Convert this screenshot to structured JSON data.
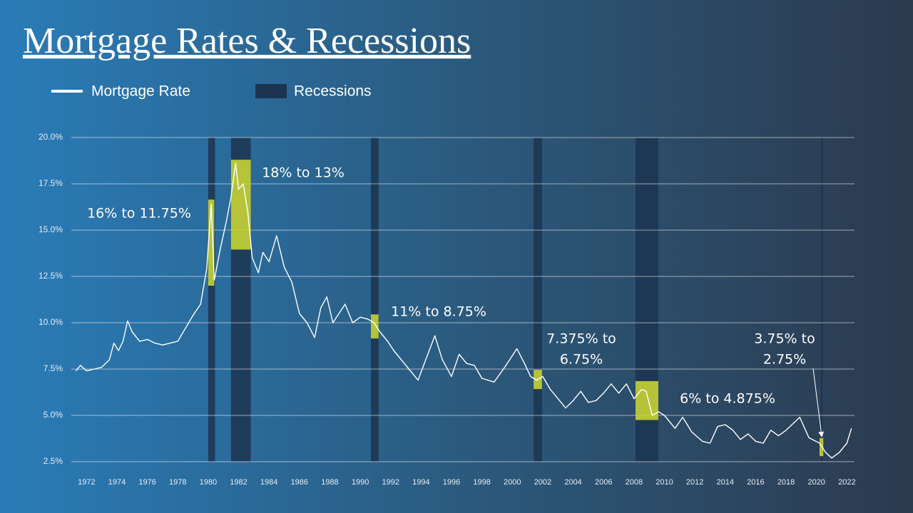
{
  "chart_data": {
    "type": "line",
    "title": "Mortgage Rates & Recessions",
    "xlim": [
      1971,
      2022.5
    ],
    "ylim": [
      2,
      20
    ],
    "xticks": [
      1972,
      1974,
      1976,
      1978,
      1980,
      1982,
      1984,
      1986,
      1988,
      1990,
      1992,
      1994,
      1996,
      1998,
      2000,
      2002,
      2004,
      2006,
      2008,
      2010,
      2012,
      2014,
      2016,
      2018,
      2020,
      2022
    ],
    "yticks": [
      {
        "value": 2.5,
        "label": "2.5%"
      },
      {
        "value": 5,
        "label": "5.0%"
      },
      {
        "value": 7.5,
        "label": "7.5%"
      },
      {
        "value": 10,
        "label": "10.0%"
      },
      {
        "value": 12.5,
        "label": "12.5%"
      },
      {
        "value": 15,
        "label": "15.0%"
      },
      {
        "value": 17.5,
        "label": "17.5%"
      },
      {
        "value": 20,
        "label": "20.0%"
      }
    ],
    "grid": true,
    "series": [
      {
        "name": "Mortgage Rate",
        "color": "#ffffff",
        "x": [
          1971.3,
          1971.6,
          1972,
          1972.5,
          1973,
          1973.5,
          1973.8,
          1974.1,
          1974.4,
          1974.7,
          1975,
          1975.5,
          1976,
          1976.5,
          1977,
          1977.5,
          1978,
          1978.5,
          1979,
          1979.5,
          1979.9,
          1980.2,
          1980.4,
          1980.8,
          1981.2,
          1981.5,
          1981.8,
          1982.0,
          1982.3,
          1982.6,
          1982.9,
          1983.3,
          1983.6,
          1984,
          1984.5,
          1985,
          1985.5,
          1986,
          1986.5,
          1987,
          1987.4,
          1987.8,
          1988.2,
          1988.6,
          1989,
          1989.5,
          1990,
          1990.5,
          1990.9,
          1991.3,
          1991.8,
          1992.2,
          1992.7,
          1993.2,
          1993.8,
          1994.3,
          1994.9,
          1995.4,
          1996,
          1996.5,
          1997,
          1997.5,
          1998,
          1998.8,
          1999.5,
          2000.3,
          2000.8,
          2001.2,
          2001.6,
          2002,
          2002.5,
          2003,
          2003.5,
          2004,
          2004.5,
          2005,
          2005.5,
          2006,
          2006.5,
          2007,
          2007.5,
          2008,
          2008.5,
          2008.8,
          2009.2,
          2009.6,
          2010,
          2010.7,
          2011.2,
          2011.8,
          2012.5,
          2013,
          2013.5,
          2014,
          2014.5,
          2015,
          2015.5,
          2016,
          2016.5,
          2017,
          2017.5,
          2018,
          2018.9,
          2019.5,
          2020.2,
          2020.6,
          2021,
          2021.5,
          2022,
          2022.3
        ],
        "values": [
          7.4,
          7.7,
          7.4,
          7.5,
          7.6,
          8.0,
          8.9,
          8.5,
          9.0,
          10.1,
          9.5,
          9.0,
          9.1,
          8.9,
          8.8,
          8.9,
          9.0,
          9.7,
          10.4,
          11.0,
          12.9,
          16.4,
          12.3,
          14.0,
          15.5,
          16.8,
          18.6,
          17.2,
          17.5,
          16.0,
          13.5,
          12.7,
          13.8,
          13.3,
          14.7,
          13.0,
          12.2,
          10.5,
          10.0,
          9.2,
          10.8,
          11.4,
          10.0,
          10.5,
          11.0,
          10.0,
          10.3,
          10.2,
          10.0,
          9.5,
          9.0,
          8.5,
          8.0,
          7.5,
          6.9,
          8.0,
          9.3,
          8.0,
          7.1,
          8.3,
          7.8,
          7.7,
          7.0,
          6.8,
          7.6,
          8.6,
          7.8,
          7.1,
          6.9,
          7.1,
          6.4,
          5.9,
          5.4,
          5.8,
          6.3,
          5.7,
          5.8,
          6.2,
          6.7,
          6.2,
          6.7,
          5.9,
          6.4,
          6.3,
          5.0,
          5.2,
          5.0,
          4.3,
          4.9,
          4.1,
          3.6,
          3.5,
          4.4,
          4.5,
          4.2,
          3.7,
          4.0,
          3.6,
          3.5,
          4.2,
          3.9,
          4.2,
          4.9,
          3.8,
          3.5,
          3.0,
          2.7,
          3.0,
          3.5,
          4.3
        ]
      }
    ],
    "recessions": {
      "name": "Recessions",
      "color": "#1c3450",
      "ranges": [
        [
          1980.0,
          1980.45
        ],
        [
          1981.5,
          1982.8
        ],
        [
          1990.7,
          1991.2
        ],
        [
          2001.4,
          2001.95
        ],
        [
          2008.1,
          2009.6
        ],
        [
          2020.3,
          2020.4
        ]
      ]
    },
    "highlight_color": "#c6d336",
    "highlights": [
      {
        "x": [
          1980.0,
          1980.4
        ],
        "y": [
          12,
          16.65
        ],
        "label": [
          "16% to 11.75%"
        ]
      },
      {
        "x": [
          1981.5,
          1982.8
        ],
        "y": [
          13.95,
          18.8
        ],
        "label": [
          "18% to 13%"
        ]
      },
      {
        "x": [
          1990.7,
          1991.2
        ],
        "y": [
          9.15,
          10.45
        ],
        "label": [
          "11% to 8.75%"
        ]
      },
      {
        "x": [
          2001.4,
          2001.95
        ],
        "y": [
          6.42,
          7.46
        ],
        "label": [
          "7.375% to",
          "6.75%"
        ]
      },
      {
        "x": [
          2008.1,
          2009.6
        ],
        "y": [
          4.75,
          6.85
        ],
        "label": [
          "6% to 4.875%"
        ]
      },
      {
        "x": [
          2020.2,
          2020.45
        ],
        "y": [
          2.8,
          3.77
        ],
        "label": [
          "3.75% to",
          "2.75%"
        ]
      }
    ]
  }
}
